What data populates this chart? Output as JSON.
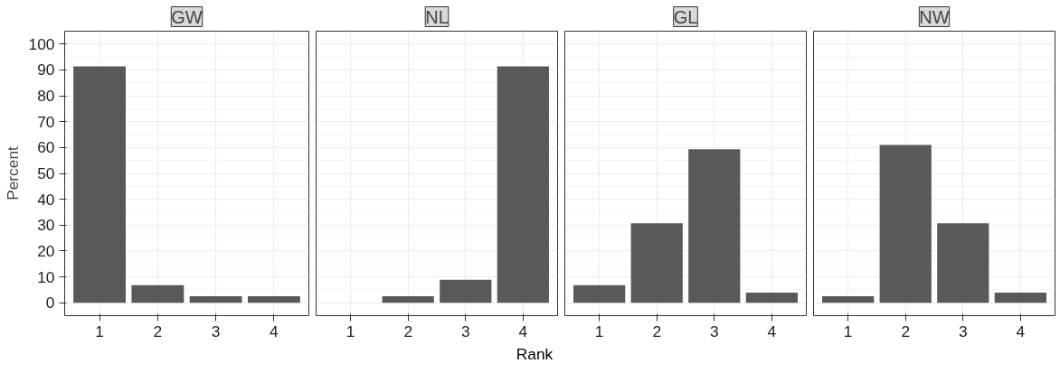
{
  "chart_data": [
    {
      "type": "bar",
      "title": "GW",
      "ylabel": "Percent",
      "categories": [
        "1",
        "2",
        "3",
        "4"
      ],
      "values": [
        91.4,
        6.8,
        2.5,
        2.5
      ],
      "color": "#595959",
      "ylim": [
        -5,
        105
      ],
      "yticks": [
        0,
        10,
        20,
        30,
        40,
        50,
        60,
        70,
        80,
        90,
        100
      ],
      "grid": true
    },
    {
      "type": "bar",
      "title": "NL",
      "xlabel": "Rank",
      "categories": [
        "1",
        "2",
        "3",
        "4"
      ],
      "values": [
        0,
        2.5,
        8.9,
        91.4
      ],
      "color": "#595959",
      "ylim": [
        -5,
        105
      ],
      "yticks": [
        0,
        10,
        20,
        30,
        40,
        50,
        60,
        70,
        80,
        90,
        100
      ],
      "grid": true,
      "tick_labels": "x"
    },
    {
      "type": "bar",
      "title": "GL",
      "categories": [
        "1",
        "2",
        "3",
        "4"
      ],
      "values": [
        6.8,
        30.7,
        59.3,
        3.9
      ],
      "color": "#595959",
      "ylim": [
        -5,
        105
      ],
      "yticks": [
        0,
        10,
        20,
        30,
        40,
        50,
        60,
        70,
        80,
        90,
        100
      ],
      "grid": true,
      "tick_labels": "x"
    },
    {
      "type": "bar",
      "title": "NW",
      "categories": [
        "1",
        "2",
        "3",
        "4"
      ],
      "values": [
        2.5,
        61,
        30.7,
        3.9
      ],
      "color": "#595959",
      "ylim": [
        -5,
        105
      ],
      "yticks": [
        0,
        10,
        20,
        30,
        40,
        50,
        60,
        70,
        80,
        90,
        100
      ],
      "grid": true,
      "tick_labels": "x"
    }
  ]
}
